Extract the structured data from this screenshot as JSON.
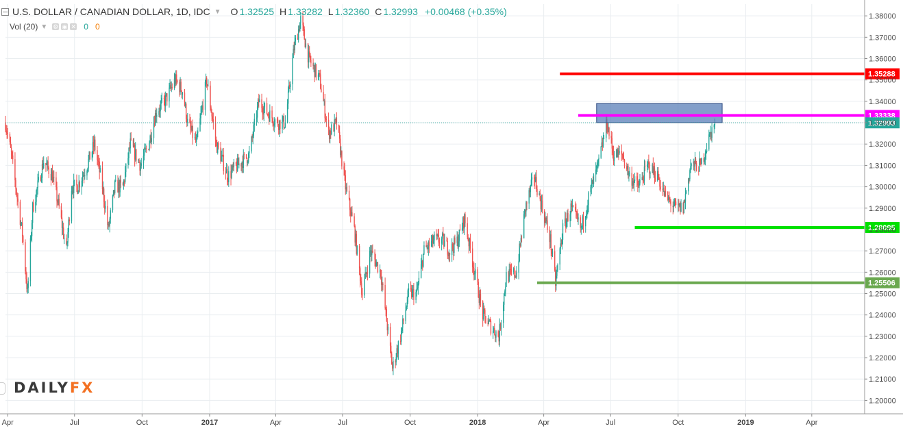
{
  "header": {
    "symbol_title": "U.S. DOLLAR / CANADIAN DOLLAR, 1D, IDC",
    "open_key": "O",
    "open": "1.32525",
    "high_key": "H",
    "high": "1.33282",
    "low_key": "L",
    "low": "1.32360",
    "close_key": "C",
    "close": "1.32993",
    "change": "+0.00468 (+0.35%)"
  },
  "volume_indicator": {
    "label": "Vol (20)",
    "value_a": "0",
    "value_b": "0"
  },
  "logo": {
    "text_main": "DAILY",
    "text_accent": "FX"
  },
  "colors": {
    "up": "#26a69a",
    "down": "#ef5350",
    "grid": "#e9edf0",
    "red_level": "#ff0000",
    "magenta_level": "#ff00ff",
    "green_level": "#00e000",
    "olive_level": "#6aa84f",
    "rect_fill": "#4f76b4",
    "last_price": "#26a69a"
  },
  "chart_data": {
    "type": "line",
    "title": "U.S. DOLLAR / CANADIAN DOLLAR, 1D, IDC",
    "series_style": "candlestick (daily)",
    "xlim": [
      "2016-03-29",
      "2019-06-12"
    ],
    "ylim": [
      1.195,
      1.3855
    ],
    "y_ticks": [
      "1.38000",
      "1.37000",
      "1.36000",
      "1.35000",
      "1.34000",
      "1.33000",
      "1.32000",
      "1.31000",
      "1.30000",
      "1.29000",
      "1.28000",
      "1.27000",
      "1.26000",
      "1.25000",
      "1.24000",
      "1.23000",
      "1.22000",
      "1.21000",
      "1.20000"
    ],
    "x_ticks": [
      {
        "label": "Apr",
        "date": "2016-04-01",
        "bold": false
      },
      {
        "label": "Jul",
        "date": "2016-07-01",
        "bold": false
      },
      {
        "label": "Oct",
        "date": "2016-10-01",
        "bold": false
      },
      {
        "label": "2017",
        "date": "2017-01-01",
        "bold": true
      },
      {
        "label": "Apr",
        "date": "2017-04-01",
        "bold": false
      },
      {
        "label": "Jul",
        "date": "2017-07-01",
        "bold": false
      },
      {
        "label": "Oct",
        "date": "2017-10-01",
        "bold": false
      },
      {
        "label": "2018",
        "date": "2018-01-01",
        "bold": true
      },
      {
        "label": "Apr",
        "date": "2018-04-01",
        "bold": false
      },
      {
        "label": "Jul",
        "date": "2018-07-01",
        "bold": false
      },
      {
        "label": "Oct",
        "date": "2018-10-01",
        "bold": false
      },
      {
        "label": "2019",
        "date": "2019-01-01",
        "bold": true
      },
      {
        "label": "Apr",
        "date": "2019-04-01",
        "bold": false
      }
    ],
    "grid": true,
    "price_path": [
      [
        "2016-03-29",
        1.33
      ],
      [
        "2016-04-06",
        1.315
      ],
      [
        "2016-04-14",
        1.295
      ],
      [
        "2016-04-21",
        1.278
      ],
      [
        "2016-04-28",
        1.25
      ],
      [
        "2016-05-05",
        1.29
      ],
      [
        "2016-05-20",
        1.312
      ],
      [
        "2016-06-01",
        1.305
      ],
      [
        "2016-06-10",
        1.29
      ],
      [
        "2016-06-20",
        1.27
      ],
      [
        "2016-06-27",
        1.3
      ],
      [
        "2016-07-05",
        1.3
      ],
      [
        "2016-07-18",
        1.31
      ],
      [
        "2016-07-28",
        1.32
      ],
      [
        "2016-08-08",
        1.3
      ],
      [
        "2016-08-16",
        1.28
      ],
      [
        "2016-08-25",
        1.3
      ],
      [
        "2016-09-05",
        1.3
      ],
      [
        "2016-09-15",
        1.32
      ],
      [
        "2016-09-29",
        1.31
      ],
      [
        "2016-10-10",
        1.32
      ],
      [
        "2016-10-20",
        1.335
      ],
      [
        "2016-11-01",
        1.34
      ],
      [
        "2016-11-15",
        1.35
      ],
      [
        "2016-11-25",
        1.345
      ],
      [
        "2016-12-02",
        1.33
      ],
      [
        "2016-12-14",
        1.32
      ],
      [
        "2016-12-28",
        1.35
      ],
      [
        "2017-01-10",
        1.32
      ],
      [
        "2017-01-26",
        1.305
      ],
      [
        "2017-02-08",
        1.31
      ],
      [
        "2017-02-24",
        1.315
      ],
      [
        "2017-03-09",
        1.34
      ],
      [
        "2017-03-20",
        1.335
      ],
      [
        "2017-04-03",
        1.33
      ],
      [
        "2017-04-14",
        1.33
      ],
      [
        "2017-04-26",
        1.365
      ],
      [
        "2017-05-05",
        1.378
      ],
      [
        "2017-05-16",
        1.36
      ],
      [
        "2017-05-31",
        1.35
      ],
      [
        "2017-06-12",
        1.325
      ],
      [
        "2017-06-23",
        1.33
      ],
      [
        "2017-07-05",
        1.3
      ],
      [
        "2017-07-17",
        1.28
      ],
      [
        "2017-07-28",
        1.25
      ],
      [
        "2017-08-08",
        1.27
      ],
      [
        "2017-08-22",
        1.26
      ],
      [
        "2017-09-07",
        1.215
      ],
      [
        "2017-09-18",
        1.23
      ],
      [
        "2017-09-29",
        1.25
      ],
      [
        "2017-10-10",
        1.25
      ],
      [
        "2017-10-20",
        1.27
      ],
      [
        "2017-11-03",
        1.275
      ],
      [
        "2017-11-14",
        1.275
      ],
      [
        "2017-11-24",
        1.27
      ],
      [
        "2017-12-05",
        1.275
      ],
      [
        "2017-12-14",
        1.285
      ],
      [
        "2017-12-28",
        1.26
      ],
      [
        "2018-01-08",
        1.24
      ],
      [
        "2018-01-18",
        1.235
      ],
      [
        "2018-01-30",
        1.23
      ],
      [
        "2018-02-09",
        1.258
      ],
      [
        "2018-02-23",
        1.26
      ],
      [
        "2018-03-07",
        1.29
      ],
      [
        "2018-03-19",
        1.305
      ],
      [
        "2018-03-30",
        1.29
      ],
      [
        "2018-04-10",
        1.275
      ],
      [
        "2018-04-17",
        1.255
      ],
      [
        "2018-04-27",
        1.28
      ],
      [
        "2018-05-08",
        1.29
      ],
      [
        "2018-05-22",
        1.28
      ],
      [
        "2018-06-01",
        1.295
      ],
      [
        "2018-06-14",
        1.31
      ],
      [
        "2018-06-26",
        1.33
      ],
      [
        "2018-07-05",
        1.315
      ],
      [
        "2018-07-17",
        1.315
      ],
      [
        "2018-07-27",
        1.305
      ],
      [
        "2018-08-08",
        1.3
      ],
      [
        "2018-08-21",
        1.31
      ],
      [
        "2018-09-03",
        1.305
      ],
      [
        "2018-09-14",
        1.295
      ],
      [
        "2018-09-28",
        1.29
      ],
      [
        "2018-10-08",
        1.29
      ],
      [
        "2018-10-18",
        1.31
      ],
      [
        "2018-11-01",
        1.31
      ],
      [
        "2018-11-14",
        1.325
      ],
      [
        "2018-11-20",
        1.3299
      ]
    ],
    "horizontal_levels": [
      {
        "value": 1.35288,
        "label": "1.35288",
        "color_key": "red_level",
        "from": "2018-04-23"
      },
      {
        "value": 1.33338,
        "label": "1.33338",
        "color_key": "magenta_level",
        "from": "2018-05-18"
      },
      {
        "value": 1.28095,
        "label": "1.28095",
        "color_key": "green_level",
        "from": "2018-08-03"
      },
      {
        "value": 1.25506,
        "label": "1.25506",
        "color_key": "olive_level",
        "from": "2018-03-23"
      }
    ],
    "zone": {
      "from": "2018-06-12",
      "to": "2018-11-30",
      "top": 1.339,
      "bottom": 1.33
    },
    "last_price": {
      "value": 1.32993,
      "label": "1.32993"
    }
  }
}
